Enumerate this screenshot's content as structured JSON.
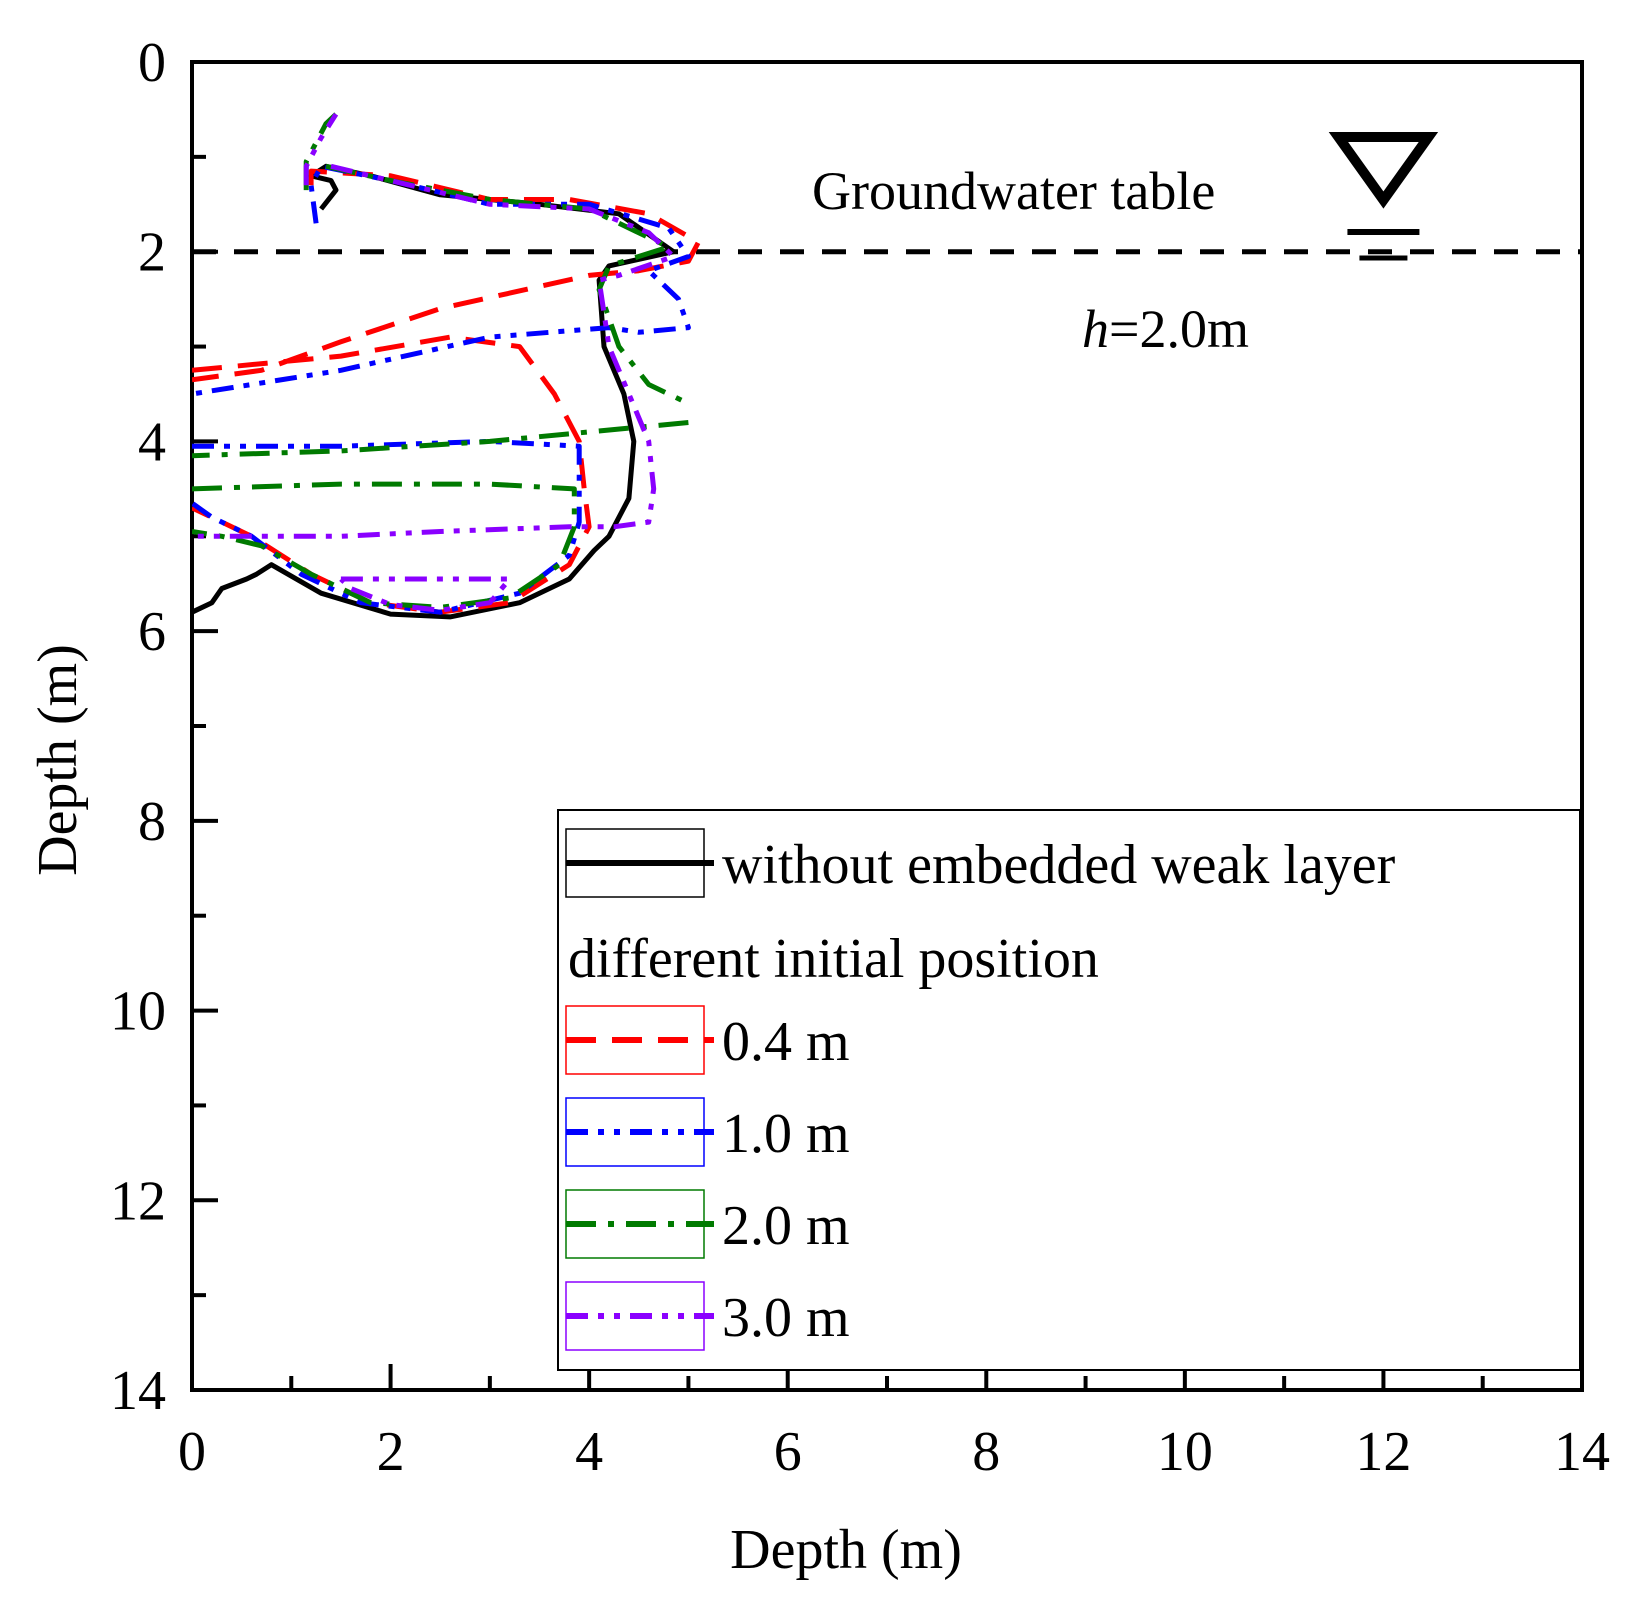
{
  "chart_data": {
    "type": "line",
    "title": "",
    "xlabel": "Depth (m)",
    "ylabel": "Depth (m)",
    "xlim": [
      0,
      14
    ],
    "ylim": [
      0,
      14
    ],
    "y_inverted": true,
    "grid": false,
    "x_ticks": [
      "0",
      "2",
      "4",
      "6",
      "8",
      "10",
      "12",
      "14"
    ],
    "y_ticks": [
      "0",
      "2",
      "4",
      "6",
      "8",
      "10",
      "12",
      "14"
    ],
    "groundwater": {
      "label": "Groundwater table",
      "depth": 2.0,
      "h_prefix": "h",
      "h_value": "=2.0m",
      "symbol_x": 12.0
    },
    "legend": {
      "position": "bottom-right",
      "subtitle": "different initial position"
    },
    "colors": {
      "baseline": "#000000",
      "s04": "#ff0000",
      "s10": "#0000ff",
      "s20": "#007a00",
      "s30": "#8a00ff"
    },
    "series": [
      {
        "key": "baseline",
        "name": "without embedded weak layer",
        "style": "solid",
        "points": [
          [
            1.3,
            1.55
          ],
          [
            1.45,
            1.35
          ],
          [
            1.4,
            1.25
          ],
          [
            1.2,
            1.2
          ],
          [
            1.35,
            1.1
          ],
          [
            1.8,
            1.2
          ],
          [
            2.5,
            1.4
          ],
          [
            3.5,
            1.5
          ],
          [
            4.3,
            1.6
          ],
          [
            4.85,
            2.0
          ],
          [
            4.2,
            2.15
          ],
          [
            4.1,
            2.3
          ],
          [
            4.15,
            3.0
          ],
          [
            4.35,
            3.5
          ],
          [
            4.45,
            4.0
          ],
          [
            4.4,
            4.6
          ],
          [
            4.2,
            5.0
          ],
          [
            4.05,
            5.15
          ],
          [
            3.8,
            5.45
          ],
          [
            3.3,
            5.7
          ],
          [
            2.6,
            5.85
          ],
          [
            2.0,
            5.82
          ],
          [
            1.3,
            5.6
          ],
          [
            0.8,
            5.3
          ],
          [
            0.65,
            5.4
          ],
          [
            0.55,
            5.45
          ],
          [
            0.3,
            5.55
          ],
          [
            0.2,
            5.7
          ],
          [
            0.0,
            5.8
          ]
        ]
      },
      {
        "key": "s04",
        "name": "0.4 m",
        "style": "dashed",
        "points": [
          [
            1.2,
            1.3
          ],
          [
            1.2,
            1.15
          ],
          [
            2.0,
            1.2
          ],
          [
            3.0,
            1.45
          ],
          [
            3.8,
            1.45
          ],
          [
            4.6,
            1.6
          ],
          [
            5.1,
            1.9
          ],
          [
            5.0,
            2.1
          ],
          [
            4.5,
            2.2
          ],
          [
            4.0,
            2.25
          ],
          [
            2.5,
            2.6
          ],
          [
            1.5,
            2.95
          ],
          [
            0.7,
            3.25
          ],
          [
            0.0,
            3.35
          ],
          null,
          [
            0.0,
            3.25
          ],
          [
            1.5,
            3.1
          ],
          [
            2.6,
            2.9
          ],
          [
            3.3,
            3.0
          ],
          [
            3.65,
            3.5
          ],
          [
            3.9,
            4.0
          ],
          [
            3.95,
            4.5
          ],
          [
            4.0,
            4.9
          ],
          [
            3.8,
            5.3
          ],
          [
            3.2,
            5.7
          ],
          [
            2.5,
            5.8
          ],
          [
            1.8,
            5.7
          ],
          [
            1.2,
            5.4
          ],
          [
            0.6,
            5.0
          ],
          [
            0.0,
            4.7
          ]
        ]
      },
      {
        "key": "s10",
        "name": "1.0 m",
        "style": "dashdotdot",
        "points": [
          [
            1.25,
            1.7
          ],
          [
            1.2,
            1.3
          ],
          [
            1.3,
            1.1
          ],
          [
            2.0,
            1.25
          ],
          [
            3.0,
            1.5
          ],
          [
            4.0,
            1.5
          ],
          [
            4.8,
            1.75
          ],
          [
            5.0,
            2.05
          ],
          [
            4.6,
            2.2
          ],
          [
            4.9,
            2.5
          ],
          [
            5.0,
            2.8
          ],
          [
            4.5,
            2.85
          ],
          [
            4.2,
            2.8
          ],
          [
            3.0,
            2.9
          ],
          [
            1.5,
            3.25
          ],
          [
            0.0,
            3.5
          ],
          null,
          [
            0.0,
            4.05
          ],
          [
            1.5,
            4.05
          ],
          [
            3.0,
            4.0
          ],
          [
            3.9,
            4.05
          ],
          [
            3.9,
            4.5
          ],
          [
            3.9,
            4.85
          ],
          [
            3.8,
            5.2
          ],
          [
            3.3,
            5.6
          ],
          [
            2.5,
            5.8
          ],
          [
            1.7,
            5.7
          ],
          [
            1.1,
            5.4
          ],
          [
            0.6,
            5.0
          ],
          [
            0.2,
            4.8
          ],
          [
            0.0,
            4.65
          ]
        ]
      },
      {
        "key": "s20",
        "name": "2.0 m",
        "style": "dashdot",
        "points": [
          [
            1.15,
            1.35
          ],
          [
            1.15,
            1.05
          ],
          [
            1.35,
            0.65
          ],
          [
            1.45,
            0.55
          ],
          null,
          [
            1.35,
            1.1
          ],
          [
            2.0,
            1.25
          ],
          [
            3.0,
            1.45
          ],
          [
            4.0,
            1.55
          ],
          [
            4.8,
            1.95
          ],
          [
            4.2,
            2.15
          ],
          [
            4.1,
            2.4
          ],
          [
            4.3,
            3.0
          ],
          [
            4.6,
            3.4
          ],
          [
            5.0,
            3.6
          ],
          null,
          [
            5.0,
            3.8
          ],
          [
            4.0,
            3.9
          ],
          [
            3.0,
            4.0
          ],
          [
            1.5,
            4.1
          ],
          [
            0.0,
            4.15
          ],
          null,
          [
            0.0,
            4.5
          ],
          [
            1.5,
            4.45
          ],
          [
            3.0,
            4.45
          ],
          [
            3.85,
            4.5
          ],
          [
            3.85,
            4.9
          ],
          [
            3.7,
            5.3
          ],
          [
            3.2,
            5.65
          ],
          [
            2.5,
            5.75
          ],
          [
            1.8,
            5.7
          ],
          [
            1.2,
            5.4
          ],
          [
            0.7,
            5.1
          ],
          [
            0.3,
            5.0
          ],
          [
            0.0,
            4.95
          ]
        ]
      },
      {
        "key": "s30",
        "name": "3.0 m",
        "style": "dashdotdot",
        "points": [
          [
            1.15,
            1.3
          ],
          [
            1.15,
            1.1
          ],
          [
            1.3,
            0.8
          ],
          [
            1.45,
            0.55
          ],
          null,
          [
            1.4,
            1.1
          ],
          [
            2.0,
            1.25
          ],
          [
            3.0,
            1.5
          ],
          [
            4.0,
            1.55
          ],
          [
            4.6,
            1.8
          ],
          [
            4.85,
            2.05
          ],
          [
            4.3,
            2.25
          ],
          [
            4.1,
            2.3
          ],
          [
            4.2,
            3.0
          ],
          [
            4.4,
            3.5
          ],
          [
            4.6,
            4.0
          ],
          [
            4.65,
            4.5
          ],
          [
            4.6,
            4.85
          ],
          [
            4.25,
            4.9
          ],
          [
            3.8,
            4.9
          ],
          [
            2.5,
            4.95
          ],
          [
            1.5,
            5.0
          ],
          [
            0.0,
            5.0
          ],
          null,
          [
            1.5,
            5.45
          ],
          [
            3.2,
            5.45
          ],
          [
            3.0,
            5.7
          ],
          [
            2.5,
            5.78
          ],
          [
            2.0,
            5.72
          ],
          [
            1.6,
            5.55
          ],
          [
            1.5,
            5.45
          ]
        ]
      }
    ]
  }
}
